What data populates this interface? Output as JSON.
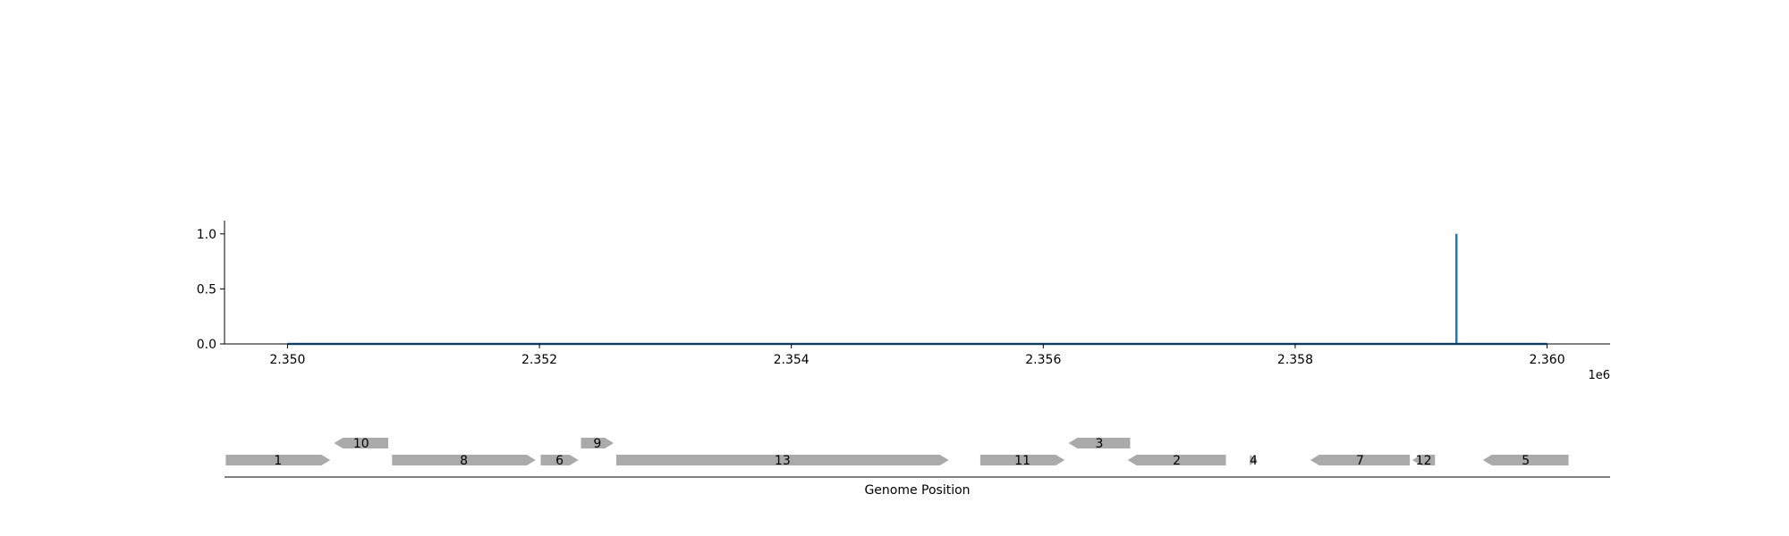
{
  "chart_data": [
    {
      "type": "line",
      "title": "",
      "xlabel": "",
      "ylabel": "",
      "x_offset_label": "1e6",
      "xlim": [
        2349500,
        2360500
      ],
      "ylim": [
        0,
        1.12
      ],
      "x_ticks": [
        2350000,
        2352000,
        2354000,
        2356000,
        2358000,
        2360000
      ],
      "x_tick_labels": [
        "2.350",
        "2.352",
        "2.354",
        "2.356",
        "2.358",
        "2.360"
      ],
      "y_ticks": [
        0,
        0.5,
        1.0
      ],
      "y_tick_labels": [
        "0.0",
        "0.5",
        "1.0"
      ],
      "grid": false,
      "series": [
        {
          "color": "#1f77b4",
          "x": [
            2350000,
            2359280,
            2359280,
            2359280,
            2360000
          ],
          "y": [
            0,
            0,
            1.0,
            0,
            0
          ]
        }
      ]
    },
    {
      "type": "gene_map",
      "xlabel": "Genome Position",
      "xlim": [
        2349500,
        2360500
      ],
      "feature_color": "#aaaaaa",
      "features": [
        {
          "label": "1",
          "start": 2349510,
          "end": 2350340,
          "strand": 1,
          "level": 0
        },
        {
          "label": "10",
          "start": 2350370,
          "end": 2350800,
          "strand": -1,
          "level": 1
        },
        {
          "label": "8",
          "start": 2350830,
          "end": 2351970,
          "strand": 1,
          "level": 0
        },
        {
          "label": "6",
          "start": 2352010,
          "end": 2352310,
          "strand": 1,
          "level": 0
        },
        {
          "label": "9",
          "start": 2352330,
          "end": 2352590,
          "strand": 1,
          "level": 1
        },
        {
          "label": "13",
          "start": 2352610,
          "end": 2355250,
          "strand": 1,
          "level": 0
        },
        {
          "label": "11",
          "start": 2355500,
          "end": 2356170,
          "strand": 1,
          "level": 0
        },
        {
          "label": "3",
          "start": 2356200,
          "end": 2356690,
          "strand": -1,
          "level": 1
        },
        {
          "label": "2",
          "start": 2356670,
          "end": 2357450,
          "strand": -1,
          "level": 0
        },
        {
          "label": "4",
          "start": 2357640,
          "end": 2357700,
          "strand": 1,
          "level": 0
        },
        {
          "label": "7",
          "start": 2358120,
          "end": 2358910,
          "strand": -1,
          "level": 0
        },
        {
          "label": "12",
          "start": 2358930,
          "end": 2359110,
          "strand": -1,
          "level": 0
        },
        {
          "label": "5",
          "start": 2359490,
          "end": 2360170,
          "strand": -1,
          "level": 0
        }
      ]
    }
  ]
}
